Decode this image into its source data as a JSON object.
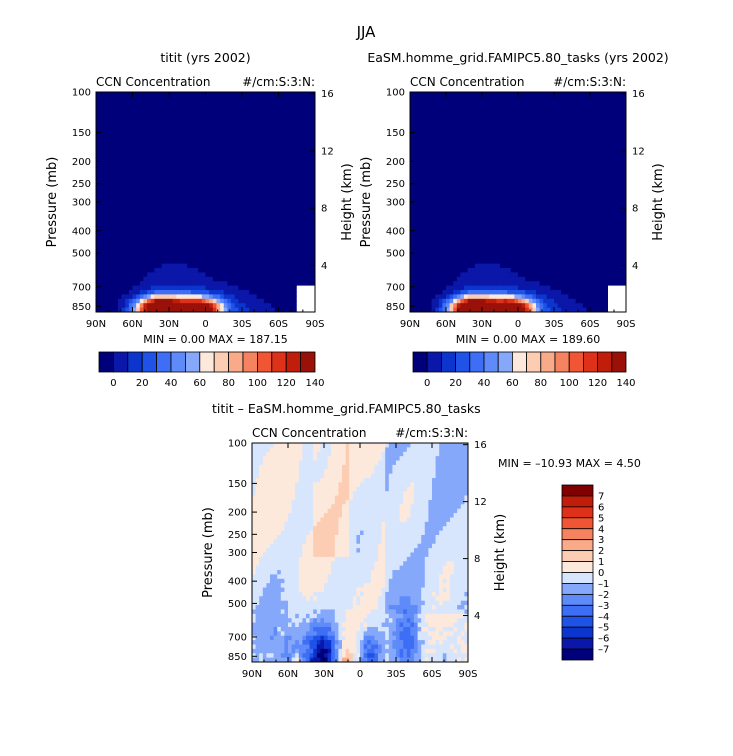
{
  "figure": {
    "title": "JJA",
    "colors": {
      "neg": [
        "#00007a",
        "#0a17a8",
        "#0c35cd",
        "#1f52e6",
        "#3d6ef5",
        "#5f8af9",
        "#86a8fb",
        "#aec6fc",
        "#d7e6fd"
      ],
      "pos": [
        "#fde9db",
        "#fccdb3",
        "#f9ab89",
        "#f6835f",
        "#f05634",
        "#de311a",
        "#c01d0b",
        "#991108",
        "#800000"
      ],
      "base": "#0c35cd"
    }
  },
  "chart_data": [
    {
      "type": "heatmap",
      "title": "titit (yrs 2002)",
      "variable_label": "CCN Concentration",
      "units": "#/cm:S:3:N:",
      "ylabel": "Pressure (mb)",
      "y2label": "Height (km)",
      "x_tick_labels": [
        "90N",
        "60N",
        "30N",
        "0",
        "30S",
        "60S",
        "90S"
      ],
      "y_tick_labels": [
        "100",
        "150",
        "200",
        "250",
        "300",
        "400",
        "500",
        "700",
        "850"
      ],
      "y2_tick_labels": [
        "16",
        "12",
        "8",
        "4"
      ],
      "xlim": [
        90,
        -90
      ],
      "ylim": [
        900,
        100
      ],
      "stats_text": "MIN =     0.00   MAX =  187.15",
      "min": 0.0,
      "max": 187.15,
      "levels": [
        0,
        10,
        20,
        30,
        40,
        50,
        60,
        70,
        80,
        90,
        100,
        110,
        120,
        130,
        140
      ],
      "colorbar_labels": [
        "0",
        "20",
        "40",
        "60",
        "80",
        "100",
        "120",
        "140"
      ],
      "features": [
        {
          "lat": 37,
          "p": 870,
          "peak": 185
        },
        {
          "lat": 5,
          "p": 870,
          "peak": 150
        }
      ]
    },
    {
      "type": "heatmap",
      "title": "EaSM.homme_grid.FAMIPC5.80_tasks (yrs 2002)",
      "variable_label": "CCN Concentration",
      "units": "#/cm:S:3:N:",
      "ylabel": "Pressure (mb)",
      "y2label": "Height (km)",
      "x_tick_labels": [
        "90N",
        "60N",
        "30N",
        "0",
        "30S",
        "60S",
        "90S"
      ],
      "y_tick_labels": [
        "100",
        "150",
        "200",
        "250",
        "300",
        "400",
        "500",
        "700",
        "850"
      ],
      "y2_tick_labels": [
        "16",
        "12",
        "8",
        "4"
      ],
      "xlim": [
        90,
        -90
      ],
      "ylim": [
        900,
        100
      ],
      "stats_text": "MIN =     0.00   MAX =  189.60",
      "min": 0.0,
      "max": 189.6,
      "levels": [
        0,
        10,
        20,
        30,
        40,
        50,
        60,
        70,
        80,
        90,
        100,
        110,
        120,
        130,
        140
      ],
      "colorbar_labels": [
        "0",
        "20",
        "40",
        "60",
        "80",
        "100",
        "120",
        "140"
      ],
      "features": [
        {
          "lat": 37,
          "p": 870,
          "peak": 188
        },
        {
          "lat": 5,
          "p": 870,
          "peak": 152
        }
      ]
    },
    {
      "type": "heatmap",
      "title": "titit – EaSM.homme_grid.FAMIPC5.80_tasks",
      "variable_label": "CCN Concentration",
      "units": "#/cm:S:3:N:",
      "ylabel": "Pressure (mb)",
      "y2label": "Height (km)",
      "x_tick_labels": [
        "90N",
        "60N",
        "30N",
        "0",
        "30S",
        "60S",
        "90S"
      ],
      "y_tick_labels": [
        "100",
        "150",
        "200",
        "250",
        "300",
        "400",
        "500",
        "700",
        "850"
      ],
      "y2_tick_labels": [
        "16",
        "12",
        "8",
        "4"
      ],
      "xlim": [
        90,
        -90
      ],
      "ylim": [
        900,
        100
      ],
      "stats_text": "MIN = –10.93   MAX =    4.50",
      "min": -10.93,
      "max": 4.5,
      "levels": [
        -7,
        -6,
        -5,
        -4,
        -3,
        -2,
        -1,
        0,
        1,
        2,
        3,
        4,
        5,
        6,
        7
      ],
      "colorbar_labels": [
        "7",
        "6",
        "5",
        "4",
        "3",
        "2",
        "1",
        "0",
        "–1",
        "–2",
        "–3",
        "–4",
        "–5",
        "–6",
        "–7"
      ]
    }
  ]
}
